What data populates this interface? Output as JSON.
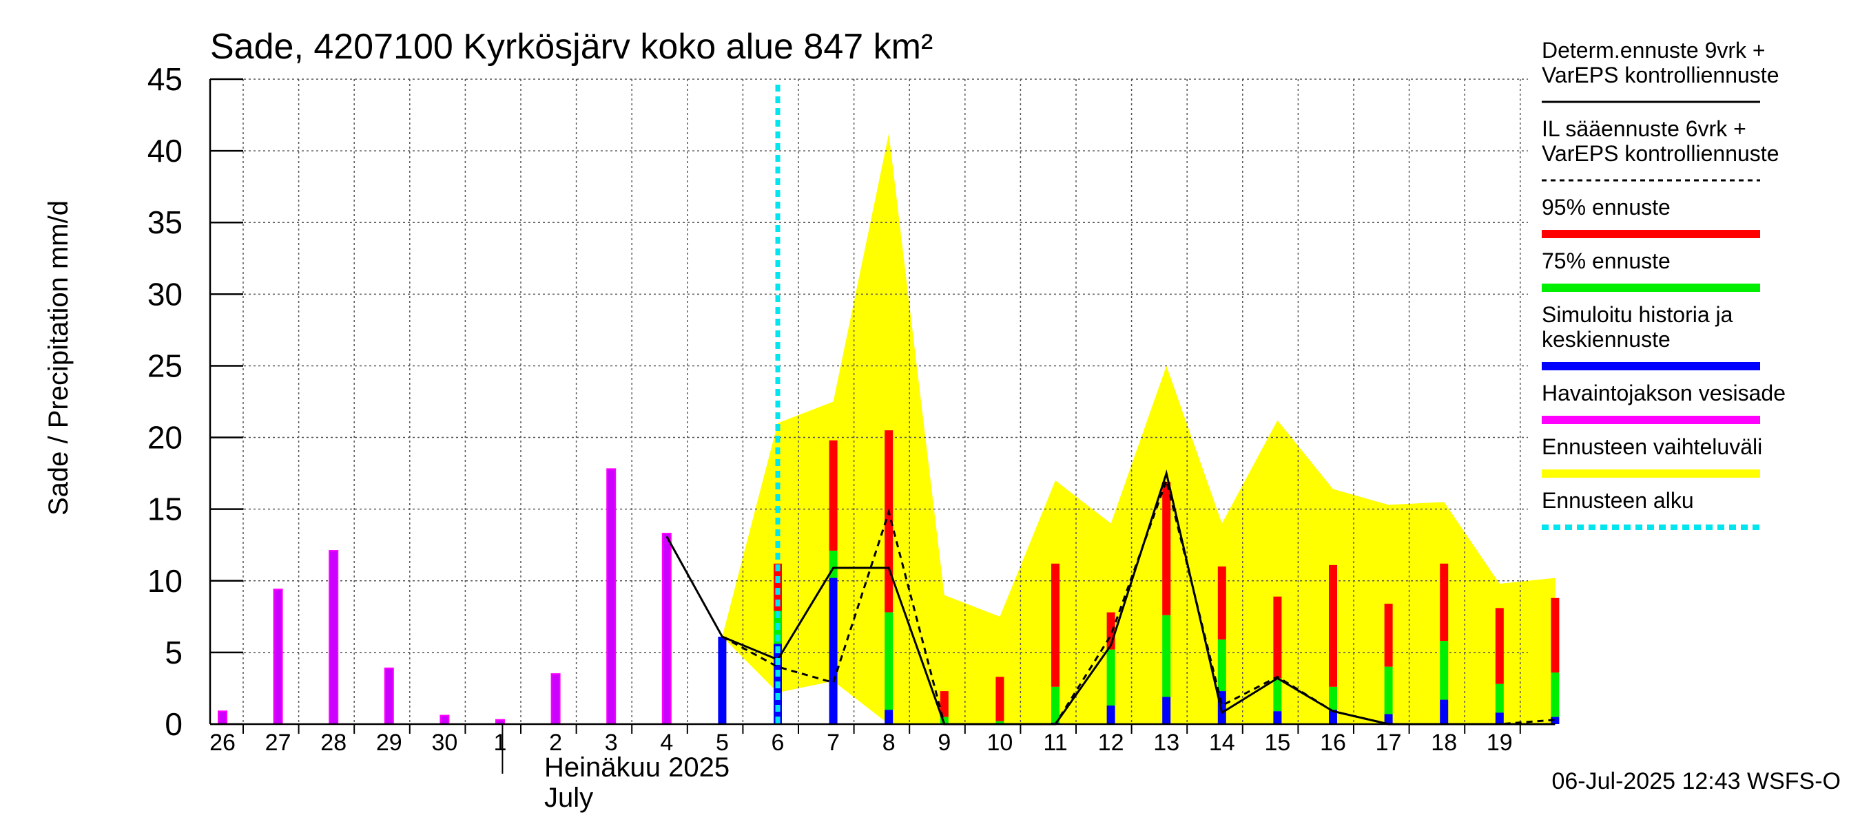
{
  "chart_data": {
    "type": "bar",
    "title": "Sade, 4207100 Kyrkösjärv koko alue 847 km²",
    "ylabel": "Sade / Precipitation   mm/d",
    "ylim": [
      0,
      45
    ],
    "yticks": [
      0,
      5,
      10,
      15,
      20,
      25,
      30,
      35,
      40,
      45
    ],
    "x_labels": [
      "26",
      "27",
      "28",
      "29",
      "30",
      "1",
      "2",
      "3",
      "4",
      "5",
      "6",
      "7",
      "8",
      "9",
      "10",
      "11",
      "12",
      "13",
      "14",
      "15",
      "16",
      "17",
      "18",
      "19"
    ],
    "month_label_fi": "Heinäkuu  2025",
    "month_label_en": "July",
    "footer": "06-Jul-2025 12:43 WSFS-O",
    "forecast_start_day": 6,
    "observed": [
      {
        "day": 26,
        "value": 0.9
      },
      {
        "day": 27,
        "value": 9.4
      },
      {
        "day": 28,
        "value": 12.1
      },
      {
        "day": 29,
        "value": 3.9
      },
      {
        "day": 30,
        "value": 0.6
      },
      {
        "day": 1,
        "value": 0.3
      },
      {
        "day": 2,
        "value": 3.5
      },
      {
        "day": 3,
        "value": 17.8
      },
      {
        "day": 4,
        "value": 13.3
      }
    ],
    "simulated_history": [
      {
        "day": 5,
        "value": 6.1
      }
    ],
    "forecast_bars": [
      {
        "day": 6,
        "median": 5.6,
        "p75": 7.9,
        "p95": 11.2
      },
      {
        "day": 7,
        "median": 10.2,
        "p75": 12.1,
        "p95": 19.8
      },
      {
        "day": 8,
        "median": 1.0,
        "p75": 7.8,
        "p95": 20.5
      },
      {
        "day": 9,
        "median": 0.0,
        "p75": 0.5,
        "p95": 2.3
      },
      {
        "day": 10,
        "median": 0.0,
        "p75": 0.2,
        "p95": 3.3
      },
      {
        "day": 11,
        "median": 0.1,
        "p75": 2.6,
        "p95": 11.2
      },
      {
        "day": 12,
        "median": 1.3,
        "p75": 5.2,
        "p95": 7.8
      },
      {
        "day": 13,
        "median": 1.9,
        "p75": 7.6,
        "p95": 16.9
      },
      {
        "day": 14,
        "median": 2.3,
        "p75": 5.9,
        "p95": 11.0
      },
      {
        "day": 15,
        "median": 0.9,
        "p75": 3.2,
        "p95": 8.9
      },
      {
        "day": 16,
        "median": 1.0,
        "p75": 2.6,
        "p95": 11.1
      },
      {
        "day": 17,
        "median": 0.7,
        "p75": 4.0,
        "p95": 8.4
      },
      {
        "day": 18,
        "median": 1.7,
        "p75": 5.8,
        "p95": 11.2
      },
      {
        "day": 19,
        "median": 0.8,
        "p75": 2.8,
        "p95": 8.1
      },
      {
        "day": 20,
        "median": 0.5,
        "p75": 3.6,
        "p95": 8.8
      }
    ],
    "range_band": {
      "x": [
        5,
        6,
        7,
        8,
        9,
        10,
        11,
        12,
        13,
        14,
        15,
        16,
        17,
        18,
        19,
        20
      ],
      "low": [
        6.1,
        2.2,
        3.0,
        0,
        0,
        0,
        0,
        0,
        0,
        0,
        0,
        0,
        0,
        0,
        0,
        0
      ],
      "high": [
        6.1,
        21.0,
        22.5,
        41.2,
        9.0,
        7.5,
        17.0,
        14.0,
        25.0,
        14.0,
        21.2,
        16.4,
        15.3,
        15.5,
        9.8,
        10.2
      ]
    },
    "determ_line": {
      "x": [
        4,
        5,
        6,
        7,
        8,
        9,
        10,
        11,
        12,
        13,
        14,
        15,
        16,
        17,
        18,
        19,
        20
      ],
      "y": [
        13.1,
        6.1,
        4.5,
        10.9,
        10.9,
        0,
        0,
        0,
        5.5,
        17.5,
        0.8,
        3.2,
        0.9,
        0,
        0,
        0,
        0
      ]
    },
    "il_line": {
      "x": [
        5,
        6,
        7,
        8,
        9,
        10,
        11,
        12,
        13,
        14,
        15,
        16,
        17,
        18,
        19,
        20
      ],
      "y": [
        6.1,
        4.0,
        2.9,
        14.8,
        0,
        0,
        0,
        6.2,
        17.0,
        1.3,
        3.3,
        0.9,
        0,
        0,
        0,
        0.3
      ]
    },
    "legend": [
      {
        "label": "Determ.ennuste 9vrk +\nVarEPS kontrolliennuste",
        "style": "solid",
        "color": "#000000"
      },
      {
        "label": "IL sääennuste 6vrk  +\n  VarEPS kontrolliennuste",
        "style": "dashed",
        "color": "#000000"
      },
      {
        "label": "95% ennuste",
        "style": "bar",
        "color": "#ff0000"
      },
      {
        "label": "75% ennuste",
        "style": "bar",
        "color": "#00ee00"
      },
      {
        "label": "Simuloitu historia ja\nkeskiennuste",
        "style": "bar",
        "color": "#0000ff"
      },
      {
        "label": "Havaintojakson vesisade",
        "style": "bar",
        "color": "#ff00ff"
      },
      {
        "label": "Ennusteen vaihteluväli",
        "style": "bar",
        "color": "#ffff00"
      },
      {
        "label": "Ennusteen alku",
        "style": "dotted",
        "color": "#00e5ee"
      }
    ],
    "colors": {
      "observed": "#cc00ff",
      "observed_edge": "#ff00ff",
      "median": "#0000ff",
      "p75": "#00ee00",
      "p95": "#ff0000",
      "band": "#ffff00",
      "forecast_start": "#00e5ee",
      "grid": "#555555"
    }
  }
}
